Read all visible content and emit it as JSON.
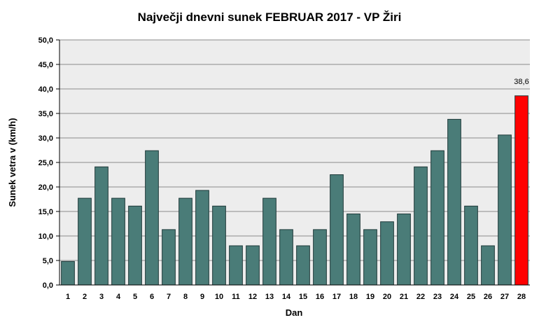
{
  "chart_data": {
    "type": "bar",
    "title": "Največji dnevni sunek FEBRUAR 2017 - VP Žiri",
    "xlabel": "Dan",
    "ylabel": "Sunek vetra v (km/h)",
    "ylim": [
      0,
      50
    ],
    "ytick_labels": [
      "0,0",
      "5,0",
      "10,0",
      "15,0",
      "20,0",
      "25,0",
      "30,0",
      "35,0",
      "40,0",
      "45,0",
      "50,0"
    ],
    "categories": [
      "1",
      "2",
      "3",
      "4",
      "5",
      "6",
      "7",
      "8",
      "9",
      "10",
      "11",
      "12",
      "13",
      "14",
      "15",
      "16",
      "17",
      "18",
      "19",
      "20",
      "21",
      "22",
      "23",
      "24",
      "25",
      "26",
      "27",
      "28"
    ],
    "values": [
      4.8,
      17.7,
      24.1,
      17.7,
      16.1,
      27.4,
      11.3,
      17.7,
      19.3,
      16.1,
      8.0,
      8.0,
      17.7,
      11.3,
      8.0,
      11.3,
      22.5,
      14.5,
      11.3,
      12.9,
      14.5,
      24.1,
      27.4,
      33.8,
      16.1,
      8.0,
      30.6,
      38.6
    ],
    "highlight_index": 27,
    "data_labels": [
      {
        "index": 27,
        "text": "38,6"
      }
    ],
    "grid": true,
    "colors": {
      "bar": "#4a7c78",
      "bar_edge": "#1f3a3a",
      "highlight": "#ff0000",
      "plot_bg": "#ededed",
      "grid": "#8a8a8a"
    }
  }
}
